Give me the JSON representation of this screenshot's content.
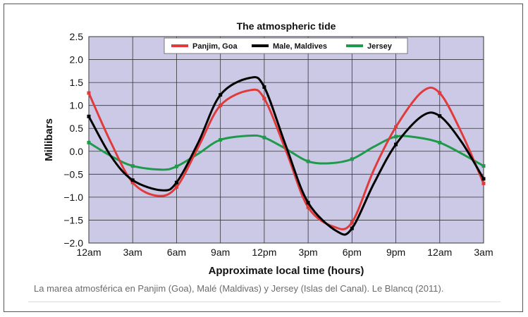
{
  "caption": "La marea atmosférica en Panjim (Goa), Malé (Maldivas) y Jersey (Islas del Canal). Le Blancq (2011).",
  "chart_data": {
    "type": "line",
    "title": "The atmospheric tide",
    "xlabel": "Approximate local time (hours)",
    "ylabel": "Millibars",
    "ylim": [
      -2.0,
      2.5
    ],
    "yticks": [
      "2.5",
      "2.0",
      "1.5",
      "1.0",
      "0.5",
      "0.0",
      "−0.5",
      "−1.0",
      "−1.5",
      "−2.0"
    ],
    "ytick_values": [
      2.5,
      2.0,
      1.5,
      1.0,
      0.5,
      0.0,
      -0.5,
      -1.0,
      -1.5,
      -2.0
    ],
    "xticks": [
      "12am",
      "3am",
      "6am",
      "9am",
      "12pm",
      "3pm",
      "6pm",
      "9pm",
      "12am",
      "3am"
    ],
    "x": [
      0,
      3,
      6,
      9,
      12,
      15,
      18,
      21,
      24,
      27
    ],
    "grid": true,
    "legend_position": "top",
    "background_color": "#ccc9e6",
    "series": [
      {
        "name": "Panjim, Goa",
        "color": "#e03a3a",
        "points": [
          [
            0,
            1.27
          ],
          [
            1.5,
            0.2
          ],
          [
            3,
            -0.68
          ],
          [
            4.7,
            -0.97
          ],
          [
            6,
            -0.78
          ],
          [
            7.5,
            0.1
          ],
          [
            9,
            1.0
          ],
          [
            11,
            1.33
          ],
          [
            12,
            1.15
          ],
          [
            13.5,
            0.0
          ],
          [
            15,
            -1.22
          ],
          [
            16.8,
            -1.65
          ],
          [
            18,
            -1.55
          ],
          [
            19.5,
            -0.4
          ],
          [
            21,
            0.53
          ],
          [
            22.8,
            1.3
          ],
          [
            24,
            1.27
          ],
          [
            25.5,
            0.4
          ],
          [
            27,
            -0.7
          ]
        ]
      },
      {
        "name": "Male, Maldives",
        "color": "#000000",
        "points": [
          [
            0,
            0.76
          ],
          [
            1.5,
            -0.1
          ],
          [
            3,
            -0.63
          ],
          [
            5,
            -0.85
          ],
          [
            6,
            -0.68
          ],
          [
            7.5,
            0.2
          ],
          [
            9,
            1.23
          ],
          [
            11,
            1.6
          ],
          [
            12,
            1.4
          ],
          [
            13.5,
            0.1
          ],
          [
            15,
            -1.12
          ],
          [
            17,
            -1.75
          ],
          [
            18,
            -1.68
          ],
          [
            19.5,
            -0.7
          ],
          [
            21,
            0.15
          ],
          [
            22.8,
            0.77
          ],
          [
            24,
            0.77
          ],
          [
            25.5,
            0.2
          ],
          [
            27,
            -0.6
          ]
        ]
      },
      {
        "name": "Jersey",
        "color": "#1e9a4a",
        "points": [
          [
            0,
            0.19
          ],
          [
            1.5,
            -0.1
          ],
          [
            3,
            -0.32
          ],
          [
            5,
            -0.4
          ],
          [
            6,
            -0.33
          ],
          [
            7.5,
            -0.05
          ],
          [
            9,
            0.25
          ],
          [
            11,
            0.34
          ],
          [
            12,
            0.3
          ],
          [
            13.5,
            0.05
          ],
          [
            15,
            -0.22
          ],
          [
            16.5,
            -0.26
          ],
          [
            18,
            -0.17
          ],
          [
            19.5,
            0.1
          ],
          [
            21,
            0.32
          ],
          [
            22.5,
            0.3
          ],
          [
            24,
            0.19
          ],
          [
            25.5,
            -0.05
          ],
          [
            27,
            -0.32
          ]
        ]
      }
    ]
  }
}
